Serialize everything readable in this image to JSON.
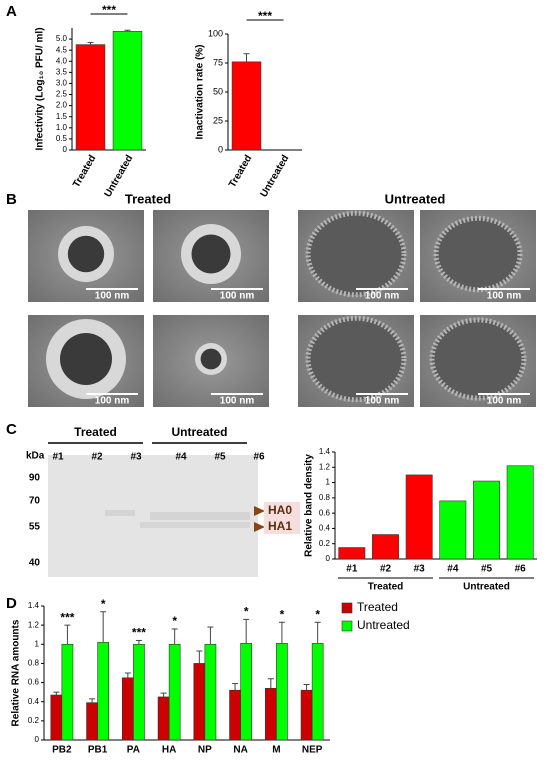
{
  "figure": {
    "panels": [
      "A",
      "B",
      "C",
      "D"
    ],
    "micrograph_headings": [
      "Treated",
      "Untreated"
    ],
    "scale_bars": [
      "100 nm",
      "100 nm",
      "100 nm",
      "100 nm",
      "100 nm",
      "100 nm",
      "100 nm",
      "100 nm"
    ],
    "blot": {
      "groups": [
        "Treated",
        "Untreated"
      ],
      "lanes": [
        "#1",
        "#2",
        "#3",
        "#4",
        "#5",
        "#6"
      ],
      "unit": "kDa",
      "markers": [
        90,
        70,
        55,
        40
      ],
      "bands": [
        "HA0",
        "HA1"
      ]
    }
  },
  "chart_data": [
    {
      "type": "bar",
      "ylabel": "Infectivity (Log₁₀ PFU/ ml)",
      "categories": [
        "Treated",
        "Untreated"
      ],
      "values": [
        4.75,
        5.35
      ],
      "errors": [
        0.1,
        0.05
      ],
      "colors": [
        "#ff0000",
        "#00ff00"
      ],
      "ylim": [
        0,
        5.5
      ],
      "yticks": [
        0,
        0.5,
        {
          "value": 1,
          "label": "1.0"
        },
        1.5,
        {
          "value": 2,
          "label": "2.0"
        },
        2.5,
        {
          "value": 3,
          "label": "3.0"
        },
        3.5,
        {
          "value": 4,
          "label": "4.0"
        },
        4.5,
        {
          "value": 5,
          "label": "5.0"
        }
      ],
      "annotation": "***"
    },
    {
      "type": "bar",
      "ylabel": "Inactivation rate (%)",
      "categories": [
        "Treated",
        "Untreated"
      ],
      "values": [
        76,
        0
      ],
      "errors": [
        7,
        null
      ],
      "colors": [
        "#ff0000",
        "#00ff00"
      ],
      "ylim": [
        0,
        100
      ],
      "yticks": [
        0,
        25,
        50,
        75,
        100
      ],
      "annotation": "***"
    },
    {
      "type": "bar",
      "ylabel": "Relative band density",
      "categories": [
        "#1",
        "#2",
        "#3",
        "#4",
        "#5",
        "#6"
      ],
      "values": [
        0.15,
        0.32,
        1.1,
        0.76,
        1.02,
        1.22
      ],
      "colors": [
        "#ff0000",
        "#ff0000",
        "#ff0000",
        "#00ff00",
        "#00ff00",
        "#00ff00"
      ],
      "ylim": [
        0,
        1.4
      ],
      "yticks": [
        0,
        0.2,
        0.4,
        0.6,
        0.8,
        1,
        1.2,
        1.4
      ],
      "groups": [
        "Treated",
        "Untreated"
      ]
    },
    {
      "type": "bar",
      "ylabel": "Relative RNA amounts",
      "categories": [
        "PB2",
        "PB1",
        "PA",
        "HA",
        "NP",
        "NA",
        "M",
        "NEP"
      ],
      "series": [
        {
          "name": "Treated",
          "color": "#cc0000",
          "values": [
            0.47,
            0.39,
            0.65,
            0.45,
            0.8,
            0.52,
            0.54,
            0.52
          ],
          "errors": [
            0.03,
            0.04,
            0.05,
            0.04,
            0.13,
            0.07,
            0.1,
            0.06
          ]
        },
        {
          "name": "Untreated",
          "color": "#00ff00",
          "values": [
            1.0,
            1.02,
            1.0,
            1.0,
            1.0,
            1.01,
            1.01,
            1.01
          ],
          "errors": [
            0.2,
            0.32,
            0.04,
            0.16,
            0.18,
            0.25,
            0.22,
            0.22
          ]
        }
      ],
      "ylim": [
        0,
        1.4
      ],
      "yticks": [
        0,
        0.2,
        0.4,
        0.6,
        0.8,
        1,
        1.2,
        1.4
      ],
      "annotations": [
        "***",
        "*",
        "***",
        "*",
        null,
        "*",
        "*",
        "*"
      ],
      "legend": "upper right"
    }
  ]
}
